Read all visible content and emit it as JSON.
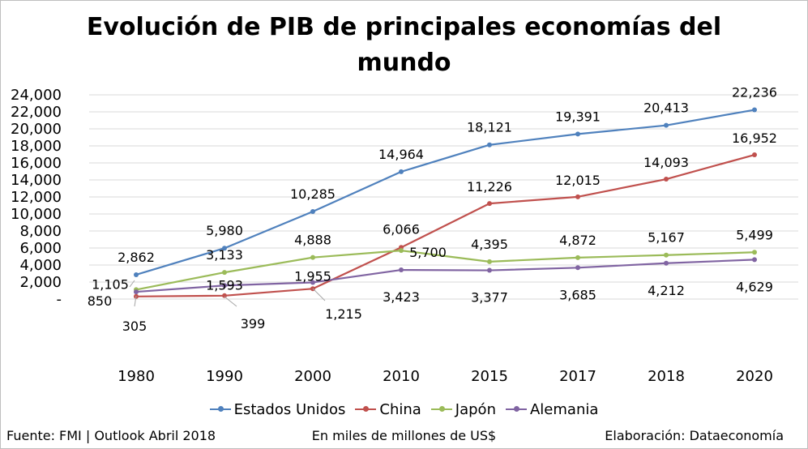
{
  "title_line1": "Evolución de PIB de principales economías del",
  "title_line2": "mundo",
  "footer": {
    "source": "Fuente: FMI | Outlook Abril 2018",
    "units": "En miles de millones de US$",
    "credit": "Elaboración: Dataeconomía"
  },
  "chart_data": {
    "type": "line",
    "title": "Evolución de PIB de principales economías del mundo",
    "categories": [
      "1980",
      "1990",
      "2000",
      "2010",
      "2015",
      "2017",
      "2018",
      "2020"
    ],
    "y_ticks": [
      "24,000",
      "22,000",
      "20,000",
      "18,000",
      "16,000",
      "14,000",
      "12,000",
      "10,000",
      "8,000",
      "6,000",
      "4,000",
      "2,000",
      "-"
    ],
    "ylim": [
      0,
      24000
    ],
    "grid": true,
    "legend_position": "bottom",
    "series": [
      {
        "name": "Estados Unidos",
        "color": "#4f81bd",
        "values": [
          2862,
          5980,
          10285,
          14964,
          18121,
          19391,
          20413,
          22236
        ],
        "labels": [
          "2,862",
          "5,980",
          "10,285",
          "14,964",
          "18,121",
          "19,391",
          "20,413",
          "22,236"
        ]
      },
      {
        "name": "China",
        "color": "#c0504d",
        "values": [
          305,
          399,
          1215,
          6066,
          11226,
          12015,
          14093,
          16952
        ],
        "labels": [
          "305",
          "399",
          "1,215",
          "6,066",
          "11,226",
          "12,015",
          "14,093",
          "16,952"
        ]
      },
      {
        "name": "Japón",
        "color": "#9bbb59",
        "values": [
          1105,
          3133,
          4888,
          5700,
          4395,
          4872,
          5167,
          5499
        ],
        "labels": [
          "1,105",
          "3,133",
          "4,888",
          "5,700",
          "4,395",
          "4,872",
          "5,167",
          "5,499"
        ]
      },
      {
        "name": "Alemania",
        "color": "#8064a2",
        "values": [
          850,
          1593,
          1955,
          3423,
          3377,
          3685,
          4212,
          4629
        ],
        "labels": [
          "850",
          "1,593",
          "1,955",
          "3,423",
          "3,377",
          "3,685",
          "4,212",
          "4,629"
        ]
      }
    ]
  }
}
